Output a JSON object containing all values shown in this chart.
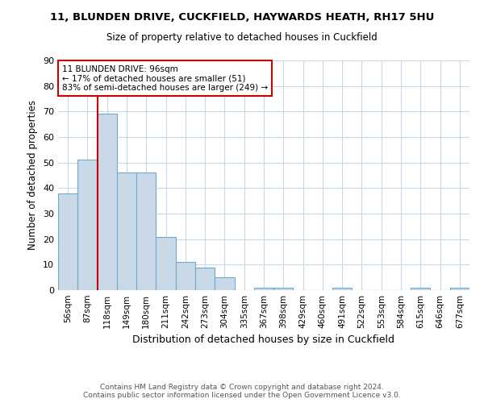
{
  "title1": "11, BLUNDEN DRIVE, CUCKFIELD, HAYWARDS HEATH, RH17 5HU",
  "title2": "Size of property relative to detached houses in Cuckfield",
  "xlabel": "Distribution of detached houses by size in Cuckfield",
  "ylabel": "Number of detached properties",
  "footer1": "Contains HM Land Registry data © Crown copyright and database right 2024.",
  "footer2": "Contains public sector information licensed under the Open Government Licence v3.0.",
  "bin_labels": [
    "56sqm",
    "87sqm",
    "118sqm",
    "149sqm",
    "180sqm",
    "211sqm",
    "242sqm",
    "273sqm",
    "304sqm",
    "335sqm",
    "367sqm",
    "398sqm",
    "429sqm",
    "460sqm",
    "491sqm",
    "522sqm",
    "553sqm",
    "584sqm",
    "615sqm",
    "646sqm",
    "677sqm"
  ],
  "bar_heights": [
    38,
    51,
    69,
    46,
    46,
    21,
    11,
    9,
    5,
    0,
    1,
    1,
    0,
    0,
    1,
    0,
    0,
    0,
    1,
    0,
    1
  ],
  "bar_color": "#c9d9e8",
  "bar_edge_color": "#6fa8c8",
  "property_label": "11 BLUNDEN DRIVE: 96sqm",
  "annotation_line1": "← 17% of detached houses are smaller (51)",
  "annotation_line2": "83% of semi-detached houses are larger (249) →",
  "vline_color": "#cc0000",
  "vline_x_index": 1.5,
  "annotation_box_color": "#cc0000",
  "ylim": [
    0,
    90
  ],
  "yticks": [
    0,
    10,
    20,
    30,
    40,
    50,
    60,
    70,
    80,
    90
  ],
  "background_color": "#ffffff",
  "grid_color": "#c8d8e8",
  "title1_fontsize": 9.5,
  "title2_fontsize": 8.5,
  "ylabel_fontsize": 8.5,
  "xlabel_fontsize": 9,
  "tick_fontsize": 7.5,
  "footer_fontsize": 6.5,
  "annot_fontsize": 7.5
}
